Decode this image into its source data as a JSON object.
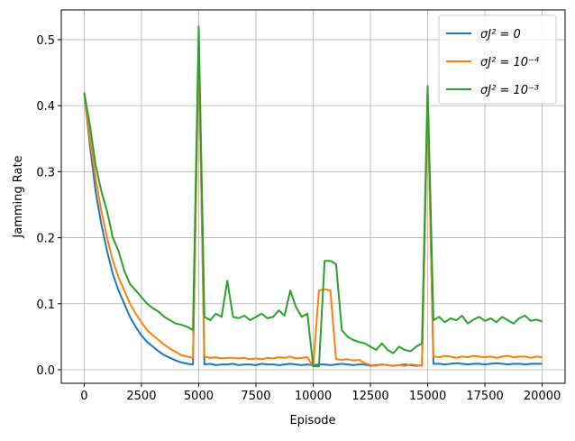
{
  "chart_data": {
    "type": "line",
    "xlabel": "Episode",
    "ylabel": "Jamming Rate",
    "x": [
      0,
      250,
      500,
      750,
      1000,
      1250,
      1500,
      1750,
      2000,
      2250,
      2500,
      2750,
      3000,
      3250,
      3500,
      3750,
      4000,
      4250,
      4500,
      4750,
      5000,
      5250,
      5500,
      5750,
      6000,
      6250,
      6500,
      6750,
      7000,
      7250,
      7500,
      7750,
      8000,
      8250,
      8500,
      8750,
      9000,
      9250,
      9500,
      9750,
      10000,
      10250,
      10500,
      10750,
      11000,
      11250,
      11500,
      11750,
      12000,
      12250,
      12500,
      12750,
      13000,
      13250,
      13500,
      13750,
      14000,
      14250,
      14500,
      14750,
      15000,
      15250,
      15500,
      15750,
      16000,
      16250,
      16500,
      16750,
      17000,
      17250,
      17500,
      17750,
      18000,
      18250,
      18500,
      18750,
      19000,
      19250,
      19500,
      19750,
      20000
    ],
    "series": [
      {
        "name": "σJ² = 0",
        "color": "#1f77b4",
        "values": [
          0.42,
          0.34,
          0.27,
          0.22,
          0.18,
          0.145,
          0.12,
          0.1,
          0.08,
          0.065,
          0.052,
          0.042,
          0.035,
          0.028,
          0.022,
          0.018,
          0.014,
          0.011,
          0.009,
          0.008,
          0.5,
          0.008,
          0.009,
          0.007,
          0.008,
          0.008,
          0.009,
          0.007,
          0.008,
          0.008,
          0.007,
          0.009,
          0.008,
          0.008,
          0.007,
          0.008,
          0.009,
          0.008,
          0.007,
          0.008,
          0.007,
          0.008,
          0.008,
          0.007,
          0.008,
          0.009,
          0.008,
          0.007,
          0.008,
          0.008,
          0.006,
          0.007,
          0.008,
          0.007,
          0.006,
          0.007,
          0.008,
          0.007,
          0.006,
          0.007,
          0.42,
          0.009,
          0.009,
          0.008,
          0.009,
          0.01,
          0.009,
          0.008,
          0.009,
          0.009,
          0.008,
          0.009,
          0.01,
          0.009,
          0.008,
          0.009,
          0.009,
          0.008,
          0.009,
          0.009,
          0.009
        ]
      },
      {
        "name": "σJ² = 10⁻⁴",
        "color": "#ff7f0e",
        "values": [
          0.42,
          0.35,
          0.29,
          0.24,
          0.2,
          0.165,
          0.14,
          0.12,
          0.1,
          0.085,
          0.072,
          0.06,
          0.052,
          0.045,
          0.038,
          0.032,
          0.027,
          0.022,
          0.02,
          0.018,
          0.49,
          0.02,
          0.018,
          0.019,
          0.017,
          0.018,
          0.018,
          0.017,
          0.018,
          0.016,
          0.017,
          0.016,
          0.018,
          0.017,
          0.019,
          0.018,
          0.02,
          0.017,
          0.018,
          0.019,
          0.005,
          0.12,
          0.122,
          0.12,
          0.016,
          0.015,
          0.016,
          0.014,
          0.015,
          0.01,
          0.007,
          0.006,
          0.008,
          0.007,
          0.006,
          0.007,
          0.006,
          0.008,
          0.007,
          0.006,
          0.41,
          0.02,
          0.019,
          0.021,
          0.02,
          0.018,
          0.02,
          0.019,
          0.021,
          0.02,
          0.019,
          0.02,
          0.018,
          0.02,
          0.021,
          0.019,
          0.02,
          0.02,
          0.018,
          0.02,
          0.019
        ]
      },
      {
        "name": "σJ² = 10⁻³",
        "color": "#2ca02c",
        "values": [
          0.42,
          0.37,
          0.31,
          0.27,
          0.24,
          0.2,
          0.18,
          0.15,
          0.13,
          0.12,
          0.11,
          0.1,
          0.093,
          0.088,
          0.08,
          0.075,
          0.07,
          0.068,
          0.065,
          0.06,
          0.52,
          0.08,
          0.075,
          0.085,
          0.08,
          0.135,
          0.08,
          0.078,
          0.082,
          0.075,
          0.08,
          0.085,
          0.078,
          0.08,
          0.09,
          0.082,
          0.12,
          0.095,
          0.08,
          0.085,
          0.005,
          0.005,
          0.165,
          0.165,
          0.16,
          0.06,
          0.05,
          0.045,
          0.042,
          0.04,
          0.035,
          0.03,
          0.04,
          0.03,
          0.025,
          0.035,
          0.03,
          0.028,
          0.035,
          0.04,
          0.43,
          0.075,
          0.08,
          0.072,
          0.078,
          0.075,
          0.082,
          0.07,
          0.076,
          0.08,
          0.074,
          0.078,
          0.072,
          0.08,
          0.075,
          0.07,
          0.078,
          0.082,
          0.074,
          0.076,
          0.073
        ]
      }
    ],
    "xlim": [
      -1000,
      21000
    ],
    "ylim": [
      -0.0205,
      0.545
    ],
    "xticks": [
      0,
      2500,
      5000,
      7500,
      10000,
      12500,
      15000,
      17500,
      20000
    ],
    "yticks": [
      {
        "value": 0,
        "label": "0.0"
      },
      0.1,
      0.2,
      0.3,
      0.4,
      0.5
    ],
    "grid": true,
    "legend": "upper-right"
  }
}
